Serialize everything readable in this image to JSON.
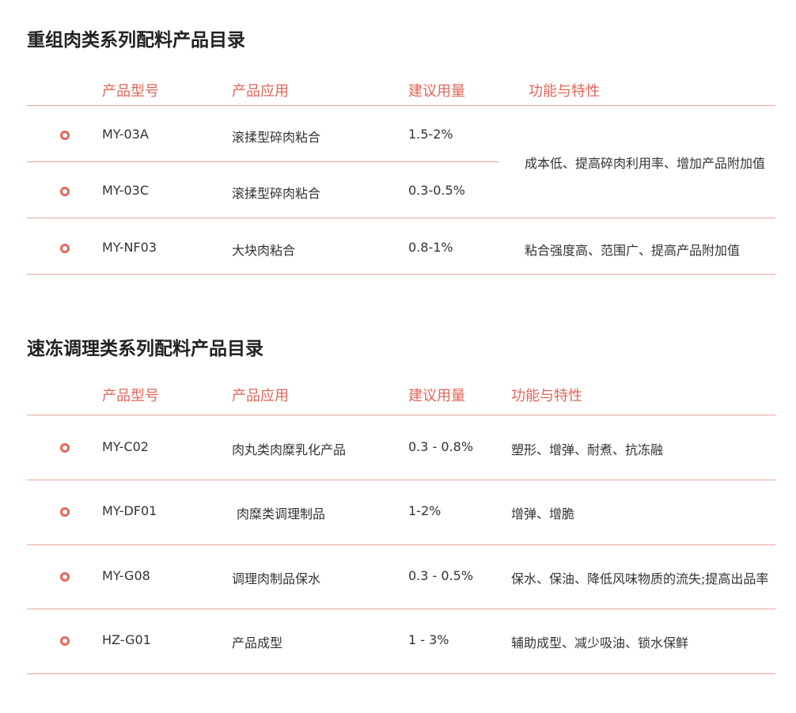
{
  "accent": "#e2695c",
  "sections": [
    {
      "title": "重组肉类系列配料产品目录",
      "headers": [
        "产品型号",
        "产品应用",
        "建议用量",
        "功能与特性"
      ],
      "rows": [
        {
          "model": "MY-03A",
          "application": "滚揉型碎肉粘合",
          "dosage": "1.5-2%"
        },
        {
          "model": "MY-03C",
          "application": "滚揉型碎肉粘合",
          "dosage": "0.3-0.5%"
        },
        {
          "model": "MY-NF03",
          "application": "大块肉粘合",
          "dosage": "0.8-1%",
          "features": "粘合强度高、范围广、提高产品附加值"
        }
      ],
      "merged_features": "成本低、提高碎肉利用率、增加产品附加值"
    },
    {
      "title": "速冻调理类系列配料产品目录",
      "headers": [
        "产品型号",
        "产品应用",
        "建议用量",
        "功能与特性"
      ],
      "rows": [
        {
          "model": "MY-C02",
          "application": "肉丸类肉糜乳化产品",
          "dosage": "0.3 - 0.8%",
          "features": "塑形、增弹、耐煮、抗冻融"
        },
        {
          "model": "MY-DF01",
          "application": "肉糜类调理制品",
          "dosage": "1-2%",
          "features": "增弹、增脆"
        },
        {
          "model": "MY-G08",
          "application": "调理肉制品保水",
          "dosage": "0.3 - 0.5%",
          "features": "保水、保油、降低风味物质的流失;提高出品率"
        },
        {
          "model": "HZ-G01",
          "application": "产品成型",
          "dosage": "1 - 3%",
          "features": "辅助成型、减少吸油、锁水保鲜"
        }
      ]
    }
  ]
}
